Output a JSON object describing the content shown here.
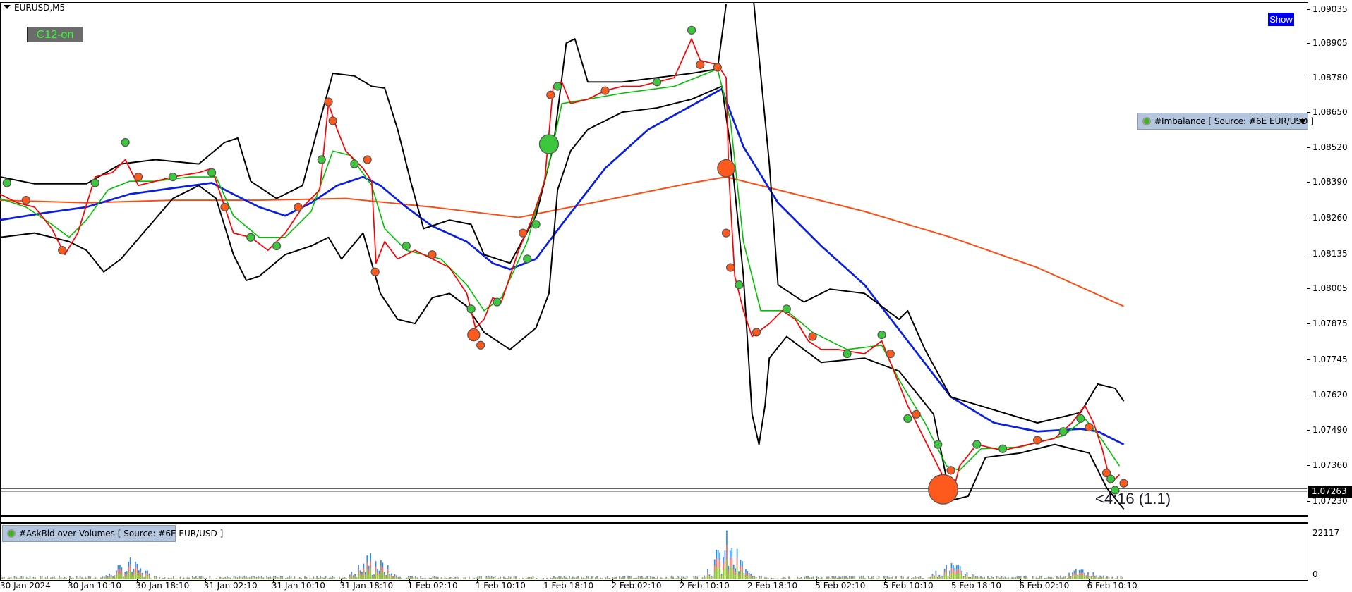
{
  "window": {
    "title": "EURUSD,M5"
  },
  "buttons": {
    "c12": "C12-on",
    "show": "Show"
  },
  "indicators": {
    "imbalance": "#Imbalance [ Source: #6E EUR/USD ]",
    "askbid": "#AskBid over Volumes [ Source: #6E EUR/USD ]"
  },
  "price_axis": [
    "1.09035",
    "1.08905",
    "1.08780",
    "1.08650",
    "1.08520",
    "1.08390",
    "1.08260",
    "1.08135",
    "1.08005",
    "1.07875",
    "1.07745",
    "1.07620",
    "1.07490",
    "1.07360",
    "1.07230"
  ],
  "current_price": "1.07263",
  "bar_timer": "<4:16 (1.1)",
  "volume_axis": {
    "max": "22117",
    "min": "0"
  },
  "time_axis": [
    "30 Jan 2024",
    "30 Jan 10:10",
    "30 Jan 18:10",
    "31 Jan 02:10",
    "31 Jan 10:10",
    "31 Jan 18:10",
    "1 Feb 02:10",
    "1 Feb 10:10",
    "1 Feb 18:10",
    "2 Feb 02:10",
    "2 Feb 10:10",
    "2 Feb 18:10",
    "5 Feb 02:10",
    "5 Feb 10:10",
    "5 Feb 18:10",
    "6 Feb 02:10",
    "6 Feb 10:10"
  ],
  "colors": {
    "price": "#ff0000",
    "ma_fast": "#00c000",
    "ma_mid": "#0a1fe0",
    "ma_slow": "#ff4a10",
    "bands": "#000000",
    "buy_marker": "#3cc83c",
    "sell_marker": "#ff5a1e",
    "show_button": "#0000ee",
    "panel_label_bg": "#b3c6de"
  }
}
